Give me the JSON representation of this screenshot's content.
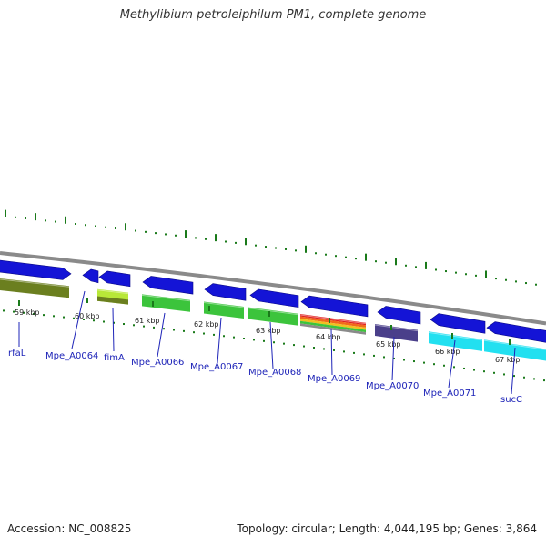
{
  "map": {
    "title": "Methylibium petroleiphilum PM1, complete genome",
    "accession": "Accession: NC_008825",
    "summary": "Topology: circular; Length: 4,044,195 bp; Genes: 3,864",
    "kbp_labels": [
      "59 kbp",
      "60 kbp",
      "61 kbp",
      "62 kbp",
      "63 kbp",
      "64 kbp",
      "65 kbp",
      "66 kbp",
      "67 kbp"
    ],
    "gene_labels": [
      "rfaL",
      "Mpe_A0064",
      "fimA",
      "Mpe_A0066",
      "Mpe_A0067",
      "Mpe_A0068",
      "Mpe_A0069",
      "Mpe_A0070",
      "Mpe_A0071",
      "sucC"
    ],
    "colors": {
      "cds_arrow": "#1414d6",
      "backbone": "#8a8a8a",
      "tick": "#1a7a1a",
      "label": "#1e24b8",
      "cog_olive": "#6b7f1f",
      "cog_green": "#3cc43c",
      "cog_purple": "#4a3f8a",
      "cog_cyan": "#22e0f0",
      "cog_lime": "#b8e838"
    }
  }
}
